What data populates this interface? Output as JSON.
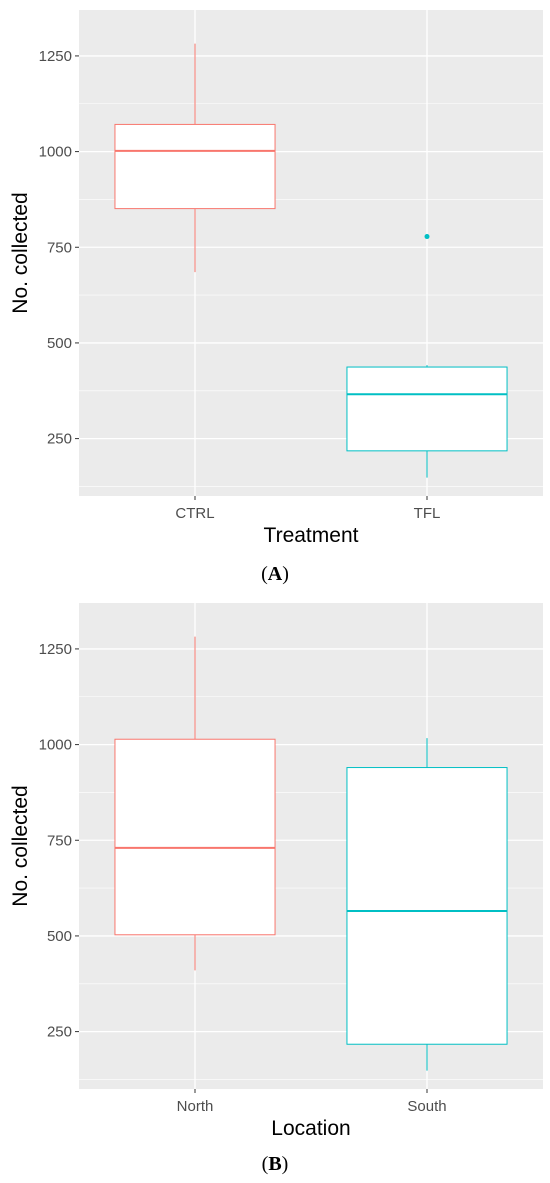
{
  "colors": {
    "panel_bg": "#EBEBEB",
    "grid": "#FFFFFF",
    "series1": "#F8766D",
    "series2": "#00BFC4",
    "tick_text": "#4D4D4D",
    "axis_title": "#000000"
  },
  "chart_data": [
    {
      "type": "boxplot",
      "panel_label": "A",
      "caption_open": "(",
      "caption_close": ")",
      "xlabel": "Treatment",
      "ylabel": "No. collected",
      "ylim": [
        100,
        1370
      ],
      "yticks": [
        250,
        500,
        750,
        1000,
        1250
      ],
      "ytick_labels": [
        "250",
        "500",
        "750",
        "1000",
        "1250"
      ],
      "categories": [
        "CTRL",
        "TFL"
      ],
      "boxes": [
        {
          "category": "CTRL",
          "whisker_low": 685,
          "q1": 851,
          "median": 1002,
          "q3": 1071,
          "whisker_high": 1282,
          "outliers": [],
          "color": "#F8766D"
        },
        {
          "category": "TFL",
          "whisker_low": 148,
          "q1": 218,
          "median": 366,
          "q3": 437,
          "whisker_high": 442,
          "outliers": [
            778
          ],
          "color": "#00BFC4"
        }
      ]
    },
    {
      "type": "boxplot",
      "panel_label": "B",
      "caption_open": "(",
      "caption_close": ")",
      "xlabel": "Location",
      "ylabel": "No. collected",
      "ylim": [
        100,
        1370
      ],
      "yticks": [
        250,
        500,
        750,
        1000,
        1250
      ],
      "ytick_labels": [
        "250",
        "500",
        "750",
        "1000",
        "1250"
      ],
      "categories": [
        "North",
        "South"
      ],
      "boxes": [
        {
          "category": "North",
          "whisker_low": 410,
          "q1": 503,
          "median": 730,
          "q3": 1014,
          "whisker_high": 1282,
          "outliers": [],
          "color": "#F8766D"
        },
        {
          "category": "South",
          "whisker_low": 148,
          "q1": 217,
          "median": 565,
          "q3": 940,
          "whisker_high": 1017,
          "outliers": [],
          "color": "#00BFC4"
        }
      ]
    }
  ]
}
